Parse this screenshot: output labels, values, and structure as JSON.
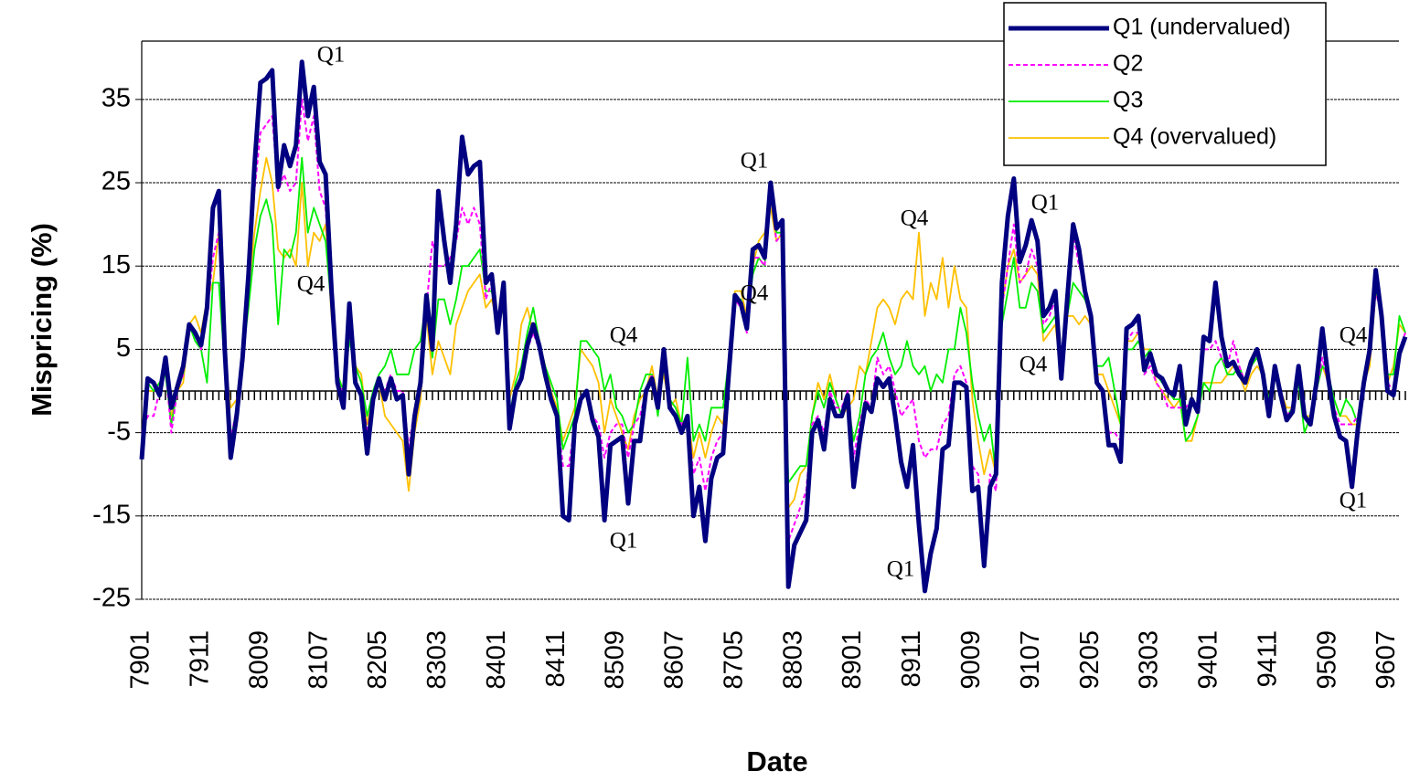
{
  "chart_data": {
    "type": "line",
    "x_label": "Date",
    "y_label": "Mispricing (%)",
    "categories": [
      "7901",
      null,
      null,
      null,
      null,
      null,
      null,
      null,
      null,
      null,
      "7911",
      null,
      null,
      null,
      null,
      null,
      null,
      null,
      null,
      null,
      "8009",
      null,
      null,
      null,
      null,
      null,
      null,
      null,
      null,
      null,
      "8107",
      null,
      null,
      null,
      null,
      null,
      null,
      null,
      null,
      null,
      "8205",
      null,
      null,
      null,
      null,
      null,
      null,
      null,
      null,
      null,
      "8303",
      null,
      null,
      null,
      null,
      null,
      null,
      null,
      null,
      null,
      "8401",
      null,
      null,
      null,
      null,
      null,
      null,
      null,
      null,
      null,
      "8411",
      null,
      null,
      null,
      null,
      null,
      null,
      null,
      null,
      null,
      "8509",
      null,
      null,
      null,
      null,
      null,
      null,
      null,
      null,
      null,
      "8607",
      null,
      null,
      null,
      null,
      null,
      null,
      null,
      null,
      null,
      "8705",
      null,
      null,
      null,
      null,
      null,
      null,
      null,
      null,
      null,
      "8803",
      null,
      null,
      null,
      null,
      null,
      null,
      null,
      null,
      null,
      "8901",
      null,
      null,
      null,
      null,
      null,
      null,
      null,
      null,
      null,
      "8911",
      null,
      null,
      null,
      null,
      null,
      null,
      null,
      null,
      null,
      "9009",
      null,
      null,
      null,
      null,
      null,
      null,
      null,
      null,
      null,
      "9107",
      null,
      null,
      null,
      null,
      null,
      null,
      null,
      null,
      null,
      "9205",
      null,
      null,
      null,
      null,
      null,
      null,
      null,
      null,
      null,
      "9303",
      null,
      null,
      null,
      null,
      null,
      null,
      null,
      null,
      null,
      "9401",
      null,
      null,
      null,
      null,
      null,
      null,
      null,
      null,
      null,
      "9411",
      null,
      null,
      null,
      null,
      null,
      null,
      null,
      null,
      null,
      "9509",
      null,
      null,
      null,
      null,
      null,
      null,
      null,
      null,
      null,
      "9607",
      null,
      null,
      null
    ],
    "series": [
      {
        "name": "Q1 (undervalued)",
        "color": "#000080",
        "values": [
          -8.2,
          1.5,
          1,
          -0.5,
          4,
          -2,
          0.5,
          3,
          8,
          7,
          5.5,
          10,
          22,
          24,
          5,
          -8,
          -3,
          4,
          14,
          27,
          37,
          37.5,
          38.5,
          24.5,
          29.5,
          27,
          29.5,
          39.5,
          33,
          36.5,
          27.5,
          26,
          12,
          1,
          -2,
          10.5,
          1,
          -0.5,
          -7.5,
          -1,
          1.5,
          -1,
          1.5,
          -1,
          -0.5,
          -10,
          -3,
          1,
          11.5,
          5,
          24,
          18,
          13,
          20,
          30.5,
          26,
          27,
          27.5,
          13,
          14,
          7,
          13,
          -4.5,
          0,
          1.5,
          5.5,
          8,
          5.5,
          2,
          -1,
          -3,
          -15,
          -15.5,
          -4,
          -1,
          0,
          -3.5,
          -5.5,
          -15.5,
          -6.5,
          -6,
          -5.5,
          -13.5,
          -6,
          -6,
          0,
          1.5,
          -2,
          5,
          -2,
          -3,
          -5,
          -3,
          -15,
          -11.5,
          -18,
          -10.5,
          -8,
          -7.5,
          2.5,
          11.5,
          10.5,
          7.5,
          17,
          17.5,
          16,
          25,
          19.5,
          20.5,
          -23.5,
          -18.5,
          -17,
          -15.5,
          -5,
          -3.5,
          -7,
          -1,
          -3,
          -3,
          -0.5,
          -11.5,
          -6,
          -1.5,
          -2.5,
          1.5,
          0.5,
          1.5,
          -3,
          -8.5,
          -11.5,
          -6.5,
          -16,
          -24,
          -19.5,
          -16.5,
          -7,
          -6.5,
          1,
          1,
          0.5,
          -12,
          -11.5,
          -21,
          -11.5,
          -10,
          13,
          21,
          25.5,
          15.5,
          17.5,
          20.5,
          18,
          9,
          10,
          12,
          1.5,
          11,
          20,
          17,
          12,
          9,
          1,
          0,
          -6.5,
          -6.5,
          -8.5,
          7.5,
          8,
          9,
          2.5,
          4.5,
          2,
          1.5,
          0,
          -0.5,
          3,
          -4,
          -1,
          -2.5,
          6.5,
          6,
          13,
          6.5,
          3,
          3.5,
          2,
          1,
          3.5,
          5,
          2,
          -3,
          3,
          -0.5,
          -3.5,
          -2.5,
          3,
          -3,
          -4,
          1,
          7.5,
          1.5,
          -3,
          -5.5,
          -6,
          -11.5,
          -4.5,
          1,
          5,
          14.5,
          9,
          0,
          -0.5,
          4.5,
          6.5
        ]
      },
      {
        "name": "Q2",
        "color": "#ff00ff",
        "values": [
          -5,
          -3,
          -3,
          0,
          3,
          -5,
          0,
          2,
          8,
          7,
          5,
          9,
          16,
          19,
          4,
          -6,
          -2,
          3,
          12,
          24,
          31,
          32,
          33,
          24,
          26,
          24,
          25,
          35,
          30,
          33,
          24,
          22,
          10,
          1,
          0,
          8,
          1,
          0,
          -5,
          -1,
          1,
          0,
          2,
          0,
          0,
          -7,
          -2,
          1,
          10,
          18,
          15,
          15,
          16,
          18,
          22,
          20,
          22,
          20,
          11,
          13,
          7,
          11,
          -3,
          0,
          2,
          5,
          7,
          5,
          2,
          -1,
          -3,
          -9,
          -9,
          -4,
          -1,
          0,
          -3,
          -4,
          -8,
          -5,
          -4,
          -4,
          -8,
          -4,
          -3,
          0,
          2,
          -2,
          5,
          -2,
          -3,
          -4,
          -3,
          -10,
          -8,
          -12,
          -8,
          -6,
          -5,
          3,
          11,
          10,
          7,
          16,
          16,
          15,
          24,
          18,
          19,
          -18,
          -16,
          -14,
          -12,
          -4,
          -3,
          -5,
          0,
          -2,
          -2,
          0,
          -8,
          -4,
          -1,
          -2,
          4,
          2,
          3,
          0,
          -3,
          -2,
          -1,
          -6,
          -8,
          -7,
          -7,
          -4,
          -3,
          2,
          3,
          1,
          -9,
          -10,
          -20,
          -10,
          -12,
          10,
          15,
          20,
          13,
          14,
          17,
          15,
          8,
          9,
          11,
          2,
          10,
          19,
          15,
          13,
          8,
          1,
          0,
          -5,
          -5,
          -6,
          6,
          7,
          7,
          2,
          3,
          1,
          0,
          -2,
          -2,
          -2,
          -2,
          -1,
          -2,
          5,
          5,
          6,
          4,
          3,
          6,
          3,
          1,
          3,
          5,
          2,
          -2,
          2,
          0,
          -3,
          -2,
          2,
          -3,
          -4,
          0,
          4,
          1,
          -2,
          -4,
          -4,
          -4,
          -3,
          1,
          4,
          12,
          9,
          1,
          0,
          5,
          7
        ]
      },
      {
        "name": "Q3",
        "color": "#00ee00",
        "values": [
          -7,
          1,
          0,
          1,
          2,
          -4,
          0,
          2,
          8,
          6,
          5,
          1,
          13,
          13,
          3,
          -6,
          -2,
          4,
          10,
          17,
          21,
          23,
          20,
          8,
          17,
          16,
          19,
          28,
          19,
          22,
          20,
          18,
          10,
          2,
          0,
          6,
          3,
          1,
          -3,
          0,
          2,
          3,
          5,
          2,
          2,
          2,
          5,
          6,
          11,
          4,
          11,
          11,
          8,
          11,
          15,
          15,
          16,
          17,
          12,
          12,
          8,
          10,
          -3,
          1,
          3,
          7,
          10,
          6,
          3,
          1,
          -1,
          -7,
          -5,
          -3,
          6,
          6,
          5,
          4,
          0,
          2,
          -2,
          -3,
          -5,
          -4,
          0,
          2,
          2,
          -3,
          3,
          -1,
          -2,
          -4,
          4,
          -6,
          -4,
          -6,
          -2,
          -2,
          -2,
          4,
          11,
          11,
          8,
          14,
          16,
          15,
          24,
          19,
          19,
          -11,
          -10,
          -9,
          -9,
          -3,
          0,
          -2,
          1,
          -1,
          -3,
          -1,
          -6,
          -3,
          2,
          4,
          5,
          7,
          4,
          2,
          3,
          6,
          3,
          2,
          3,
          0,
          2,
          1,
          5,
          5,
          10,
          7,
          1,
          -3,
          -6,
          -4,
          -10,
          8,
          12,
          16,
          10,
          10,
          13,
          12,
          7,
          8,
          9,
          3,
          9,
          13,
          12,
          11,
          9,
          3,
          3,
          4,
          0,
          -4,
          5,
          5,
          6,
          4,
          5,
          2,
          1,
          0,
          -1,
          -1,
          -6,
          -5,
          -3,
          1,
          0,
          3,
          4,
          2,
          2,
          3,
          1,
          3,
          4,
          2,
          -1,
          2,
          0,
          -3,
          -2,
          1,
          -5,
          -3,
          0,
          3,
          2,
          -1,
          -3,
          -1,
          -2,
          -4,
          2,
          5,
          12,
          10,
          2,
          2,
          9,
          7
        ]
      },
      {
        "name": "Q4 (overvalued)",
        "color": "#ffc000",
        "values": [
          -6,
          0,
          0,
          1,
          2,
          -3,
          0,
          1,
          8,
          9,
          7,
          11,
          13,
          19,
          4,
          -2,
          -1,
          3,
          12,
          19,
          24,
          28,
          25,
          17,
          16,
          17,
          15,
          25,
          15,
          19,
          18,
          20,
          9,
          2,
          0,
          7,
          3,
          2,
          -4,
          -1,
          1,
          -3,
          -4,
          -5,
          -6,
          -12,
          -5,
          -1,
          9,
          2,
          6,
          4,
          2,
          8,
          10,
          12,
          13,
          14,
          10,
          11,
          8,
          10,
          -1,
          2,
          8,
          10,
          7,
          6,
          3,
          0,
          -2,
          -6,
          -4,
          -2,
          5,
          4,
          3,
          1,
          -5,
          -1,
          -3,
          -5,
          -7,
          -3,
          -1,
          0,
          3,
          -1,
          2,
          -2,
          -1,
          -4,
          -3,
          -8,
          -5,
          -8,
          -5,
          -3,
          -4,
          3,
          12,
          12,
          9,
          15,
          18,
          19,
          22,
          18,
          19,
          -14,
          -13,
          -10,
          -9,
          -3,
          1,
          -1,
          2,
          -1,
          -3,
          -2,
          -1,
          3,
          2,
          6,
          10,
          11,
          10,
          8,
          11,
          12,
          11,
          19,
          9,
          13,
          11,
          16,
          10,
          15,
          11,
          10,
          -1,
          -6,
          -10,
          -7,
          -10,
          10,
          15,
          17,
          13,
          14,
          15,
          14,
          6,
          7,
          8,
          2,
          9,
          9,
          8,
          9,
          8,
          2,
          2,
          0,
          -2,
          -4,
          6,
          6,
          7,
          5,
          5,
          1,
          0,
          -1,
          -2,
          -1,
          -6,
          -6,
          -3,
          1,
          1,
          1,
          1,
          2,
          3,
          2,
          0,
          2,
          3,
          2,
          -1,
          2,
          0,
          -2,
          -2,
          1,
          -3,
          -3,
          1,
          3,
          1,
          -1,
          -3,
          -3,
          -4,
          -4,
          1,
          3,
          12,
          9,
          1,
          3,
          8,
          7
        ]
      }
    ],
    "ylim": [
      -25,
      42
    ],
    "yticks": [
      -25,
      -15,
      -5,
      5,
      15,
      25,
      35
    ],
    "grid": true,
    "legend": "top-right",
    "annotations": [
      "Q1",
      "Q4",
      "Q1",
      "Q4",
      "Q4",
      "Q1",
      "Q4",
      "Q1",
      "Q1",
      "Q4",
      "Q4",
      "Q1"
    ]
  }
}
